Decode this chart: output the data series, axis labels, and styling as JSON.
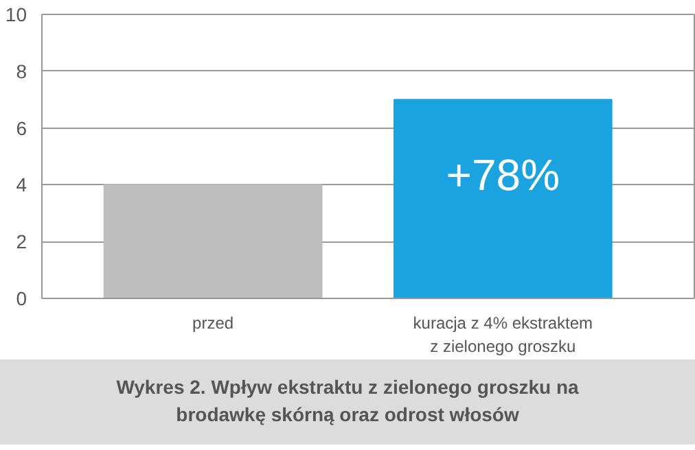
{
  "chart_data": {
    "type": "bar",
    "categories": [
      "przed",
      "kuracja z 4% ekstraktem\nz zielonego groszku"
    ],
    "values": [
      4,
      7
    ],
    "colors": [
      "#bdbdbd",
      "#1ba3df"
    ],
    "ylim": [
      0,
      10
    ],
    "yticks": [
      0,
      2,
      4,
      6,
      8,
      10
    ],
    "grid": "y",
    "annotations": [
      "+78%",
      "Wykres 2. Wpływ ekstraktu z zielonego groszku na brodawkę skórną oraz odrost włosów"
    ]
  }
}
